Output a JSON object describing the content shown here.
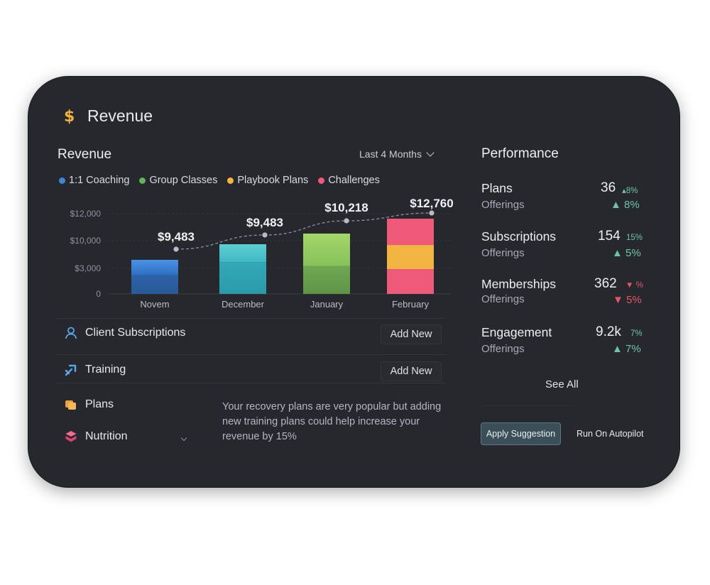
{
  "header": {
    "icon": "dollar-icon",
    "icon_glyph": "$",
    "title": "Revenue"
  },
  "revenue_panel": {
    "title": "Revenue",
    "range_label": "Last 4 Months",
    "legend": [
      {
        "label": "1:1 Coaching",
        "color": "#3f86d8"
      },
      {
        "label": "Group Classes",
        "color": "#62b35b"
      },
      {
        "label": "Playbook Plans",
        "color": "#f2b542"
      },
      {
        "label": "Challenges",
        "color": "#ef5a7a"
      }
    ]
  },
  "chart_data": {
    "type": "bar",
    "categories": [
      "Novem",
      "December",
      "January",
      "February"
    ],
    "y_ticks": [
      "$12,000",
      "$10,000",
      "$3,000",
      "0"
    ],
    "bar_labels": [
      "$9,483",
      "$9,483",
      "$10,218",
      "$12,760"
    ],
    "values": [
      9483,
      9483,
      10218,
      12760
    ],
    "grid": true,
    "trend_line": true
  },
  "menu": [
    {
      "label": "Client Subscriptions",
      "icon": "user-icon",
      "action": "Add New"
    },
    {
      "label": "Training",
      "icon": "training-icon",
      "action": "Add New"
    },
    {
      "label": "Plans",
      "icon": "plans-icon"
    },
    {
      "label": "Nutrition",
      "icon": "nutrition-icon"
    }
  ],
  "suggestion": {
    "text": "Your recovery plans are very popular but adding new training plans could help increase your revenue by 15%",
    "apply_label": "Apply Suggestion",
    "autopilot_label": "Run On Autopilot"
  },
  "performance": {
    "title": "Performance",
    "items": [
      {
        "name": "Plans",
        "sub": "Offerings",
        "value": "36",
        "small": "8%",
        "big": "8%",
        "direction": "up"
      },
      {
        "name": "Subscriptions",
        "sub": "Offerings",
        "value": "154",
        "small": "15%",
        "big": "5%",
        "direction": "up"
      },
      {
        "name": "Memberships",
        "sub": "Offerings",
        "value": "362",
        "small": "%",
        "big": "5%",
        "direction": "down"
      },
      {
        "name": "Engagement",
        "sub": "Offerings",
        "value": "9.2k",
        "small": "7%",
        "big": "7%",
        "direction": "up"
      }
    ],
    "see_all": "See All"
  }
}
